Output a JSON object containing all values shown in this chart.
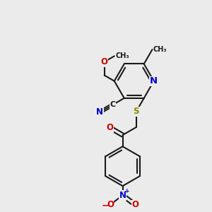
{
  "bg_color": "#ebebeb",
  "bond_color": "#1a1a1a",
  "bond_width": 1.5,
  "atom_colors": {
    "C": "#1a1a1a",
    "N": "#0000cc",
    "O": "#cc0000",
    "S": "#8b8b00"
  },
  "font_size": 8.5,
  "fig_size": [
    3.0,
    3.0
  ],
  "dpi": 100,
  "xlim": [
    0,
    10
  ],
  "ylim": [
    0,
    10
  ]
}
